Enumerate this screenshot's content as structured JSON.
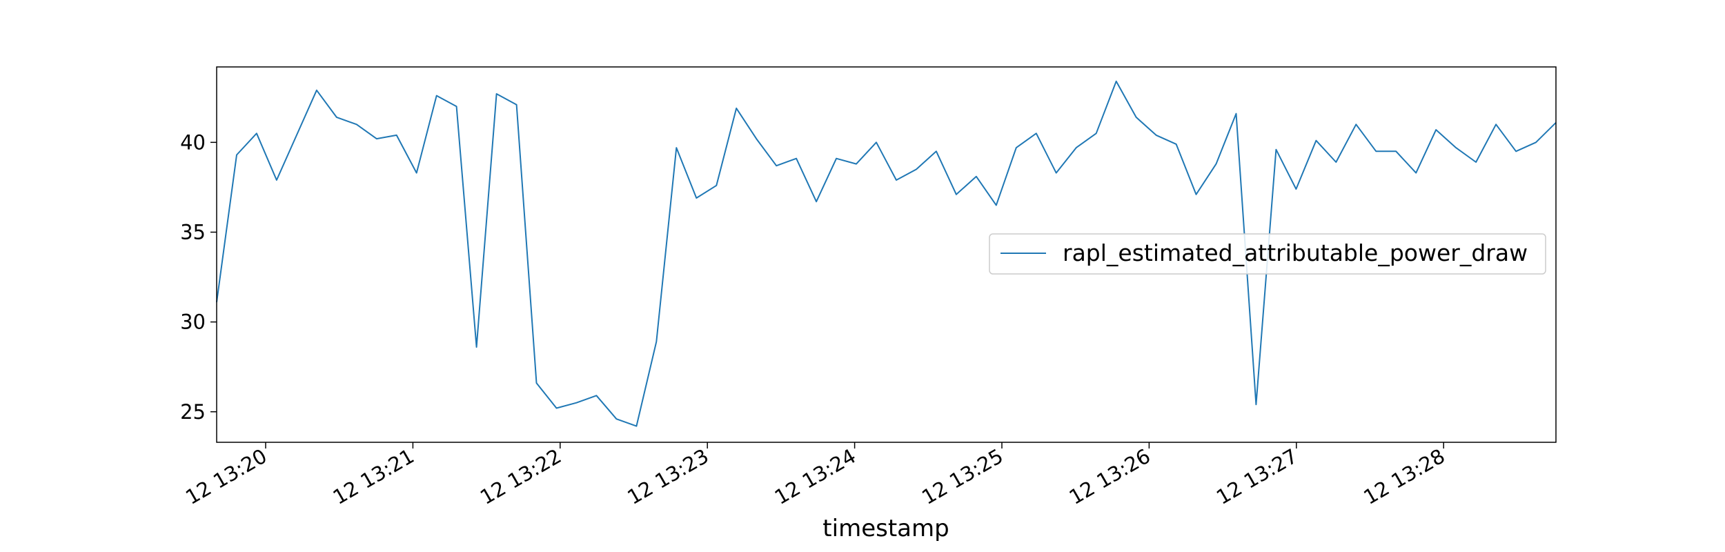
{
  "chart_data": {
    "type": "line",
    "title": "",
    "xlabel": "timestamp",
    "ylabel": "",
    "series_color": "#1f77b4",
    "x_tick_labels": [
      "12 13:20",
      "12 13:21",
      "12 13:22",
      "12 13:23",
      "12 13:24",
      "12 13:25",
      "12 13:26",
      "12 13:27",
      "12 13:28"
    ],
    "y_ticks": [
      25,
      30,
      35,
      40
    ],
    "ylim": [
      23.3,
      44.2
    ],
    "legend_position": "center-right",
    "grid": false,
    "series": [
      {
        "name": "rapl_estimated_attributable_power_draw",
        "values": [
          31.1,
          39.3,
          40.5,
          37.9,
          40.4,
          42.9,
          41.4,
          41.0,
          40.2,
          40.4,
          38.3,
          42.6,
          42.0,
          28.6,
          42.7,
          42.1,
          26.6,
          25.2,
          25.5,
          25.9,
          24.6,
          24.2,
          28.9,
          39.7,
          36.9,
          37.6,
          41.9,
          40.2,
          38.7,
          39.1,
          36.7,
          39.1,
          38.8,
          40.0,
          37.9,
          38.5,
          39.5,
          37.1,
          38.1,
          36.5,
          39.7,
          40.5,
          38.3,
          39.7,
          40.5,
          43.4,
          41.4,
          40.4,
          39.9,
          37.1,
          38.8,
          41.6,
          25.4,
          39.6,
          37.4,
          40.1,
          38.9,
          41.0,
          39.5,
          39.5,
          38.3,
          40.7,
          39.7,
          38.9,
          41.0,
          39.5,
          40.0,
          41.1
        ]
      }
    ]
  }
}
